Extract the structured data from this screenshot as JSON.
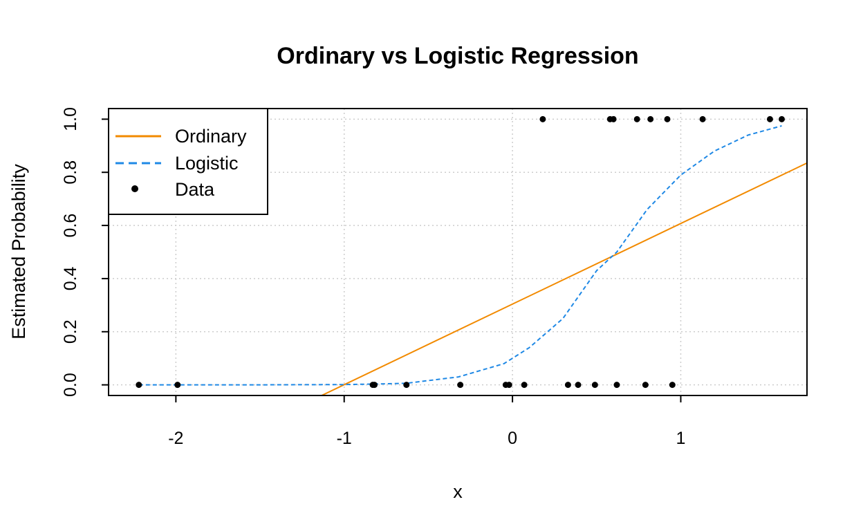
{
  "chart_data": {
    "type": "line",
    "title": "Ordinary vs Logistic Regression",
    "xlabel": "x",
    "ylabel": "Estimated Probability",
    "xlim": [
      -2.4,
      1.75
    ],
    "ylim": [
      -0.04,
      1.04
    ],
    "x_ticks": [
      -2,
      -1,
      0,
      1
    ],
    "x_tick_labels": [
      "-2",
      "-1",
      "0",
      "1"
    ],
    "y_ticks": [
      0.0,
      0.2,
      0.4,
      0.6,
      0.8,
      1.0
    ],
    "y_tick_labels": [
      "0.0",
      "0.2",
      "0.4",
      "0.6",
      "0.8",
      "1.0"
    ],
    "grid": true,
    "legend": {
      "position": "top-left",
      "entries": [
        {
          "label": "Ordinary",
          "style": "solid line",
          "color": "#f28a00"
        },
        {
          "label": "Logistic",
          "style": "dashed line",
          "color": "#1e88e5"
        },
        {
          "label": "Data",
          "style": "point",
          "color": "#000000"
        }
      ]
    },
    "series": [
      {
        "name": "Ordinary",
        "kind": "line",
        "color": "#f28a00",
        "x": [
          -1.15,
          1.75
        ],
        "y": [
          -0.045,
          0.835
        ]
      },
      {
        "name": "Logistic",
        "kind": "dashed",
        "color": "#1e88e5",
        "x": [
          -2.22,
          -1.5,
          -1.0,
          -0.83,
          -0.63,
          -0.32,
          -0.05,
          0.1,
          0.3,
          0.5,
          0.62,
          0.8,
          1.0,
          1.2,
          1.4,
          1.6
        ],
        "y": [
          0.0,
          0.0,
          0.001,
          0.003,
          0.006,
          0.03,
          0.08,
          0.14,
          0.25,
          0.43,
          0.5,
          0.66,
          0.79,
          0.88,
          0.94,
          0.975
        ]
      },
      {
        "name": "Data",
        "kind": "points",
        "color": "#000000",
        "x": [
          -2.22,
          -1.99,
          -0.83,
          -0.82,
          -0.63,
          -0.31,
          -0.04,
          -0.02,
          0.07,
          0.33,
          0.39,
          0.49,
          0.62,
          0.79,
          0.95,
          0.18,
          0.58,
          0.6,
          0.74,
          0.82,
          0.92,
          1.13,
          1.53,
          1.6
        ],
        "y": [
          0,
          0,
          0,
          0,
          0,
          0,
          0,
          0,
          0,
          0,
          0,
          0,
          0,
          0,
          0,
          1,
          1,
          1,
          1,
          1,
          1,
          1,
          1,
          1
        ]
      }
    ]
  }
}
